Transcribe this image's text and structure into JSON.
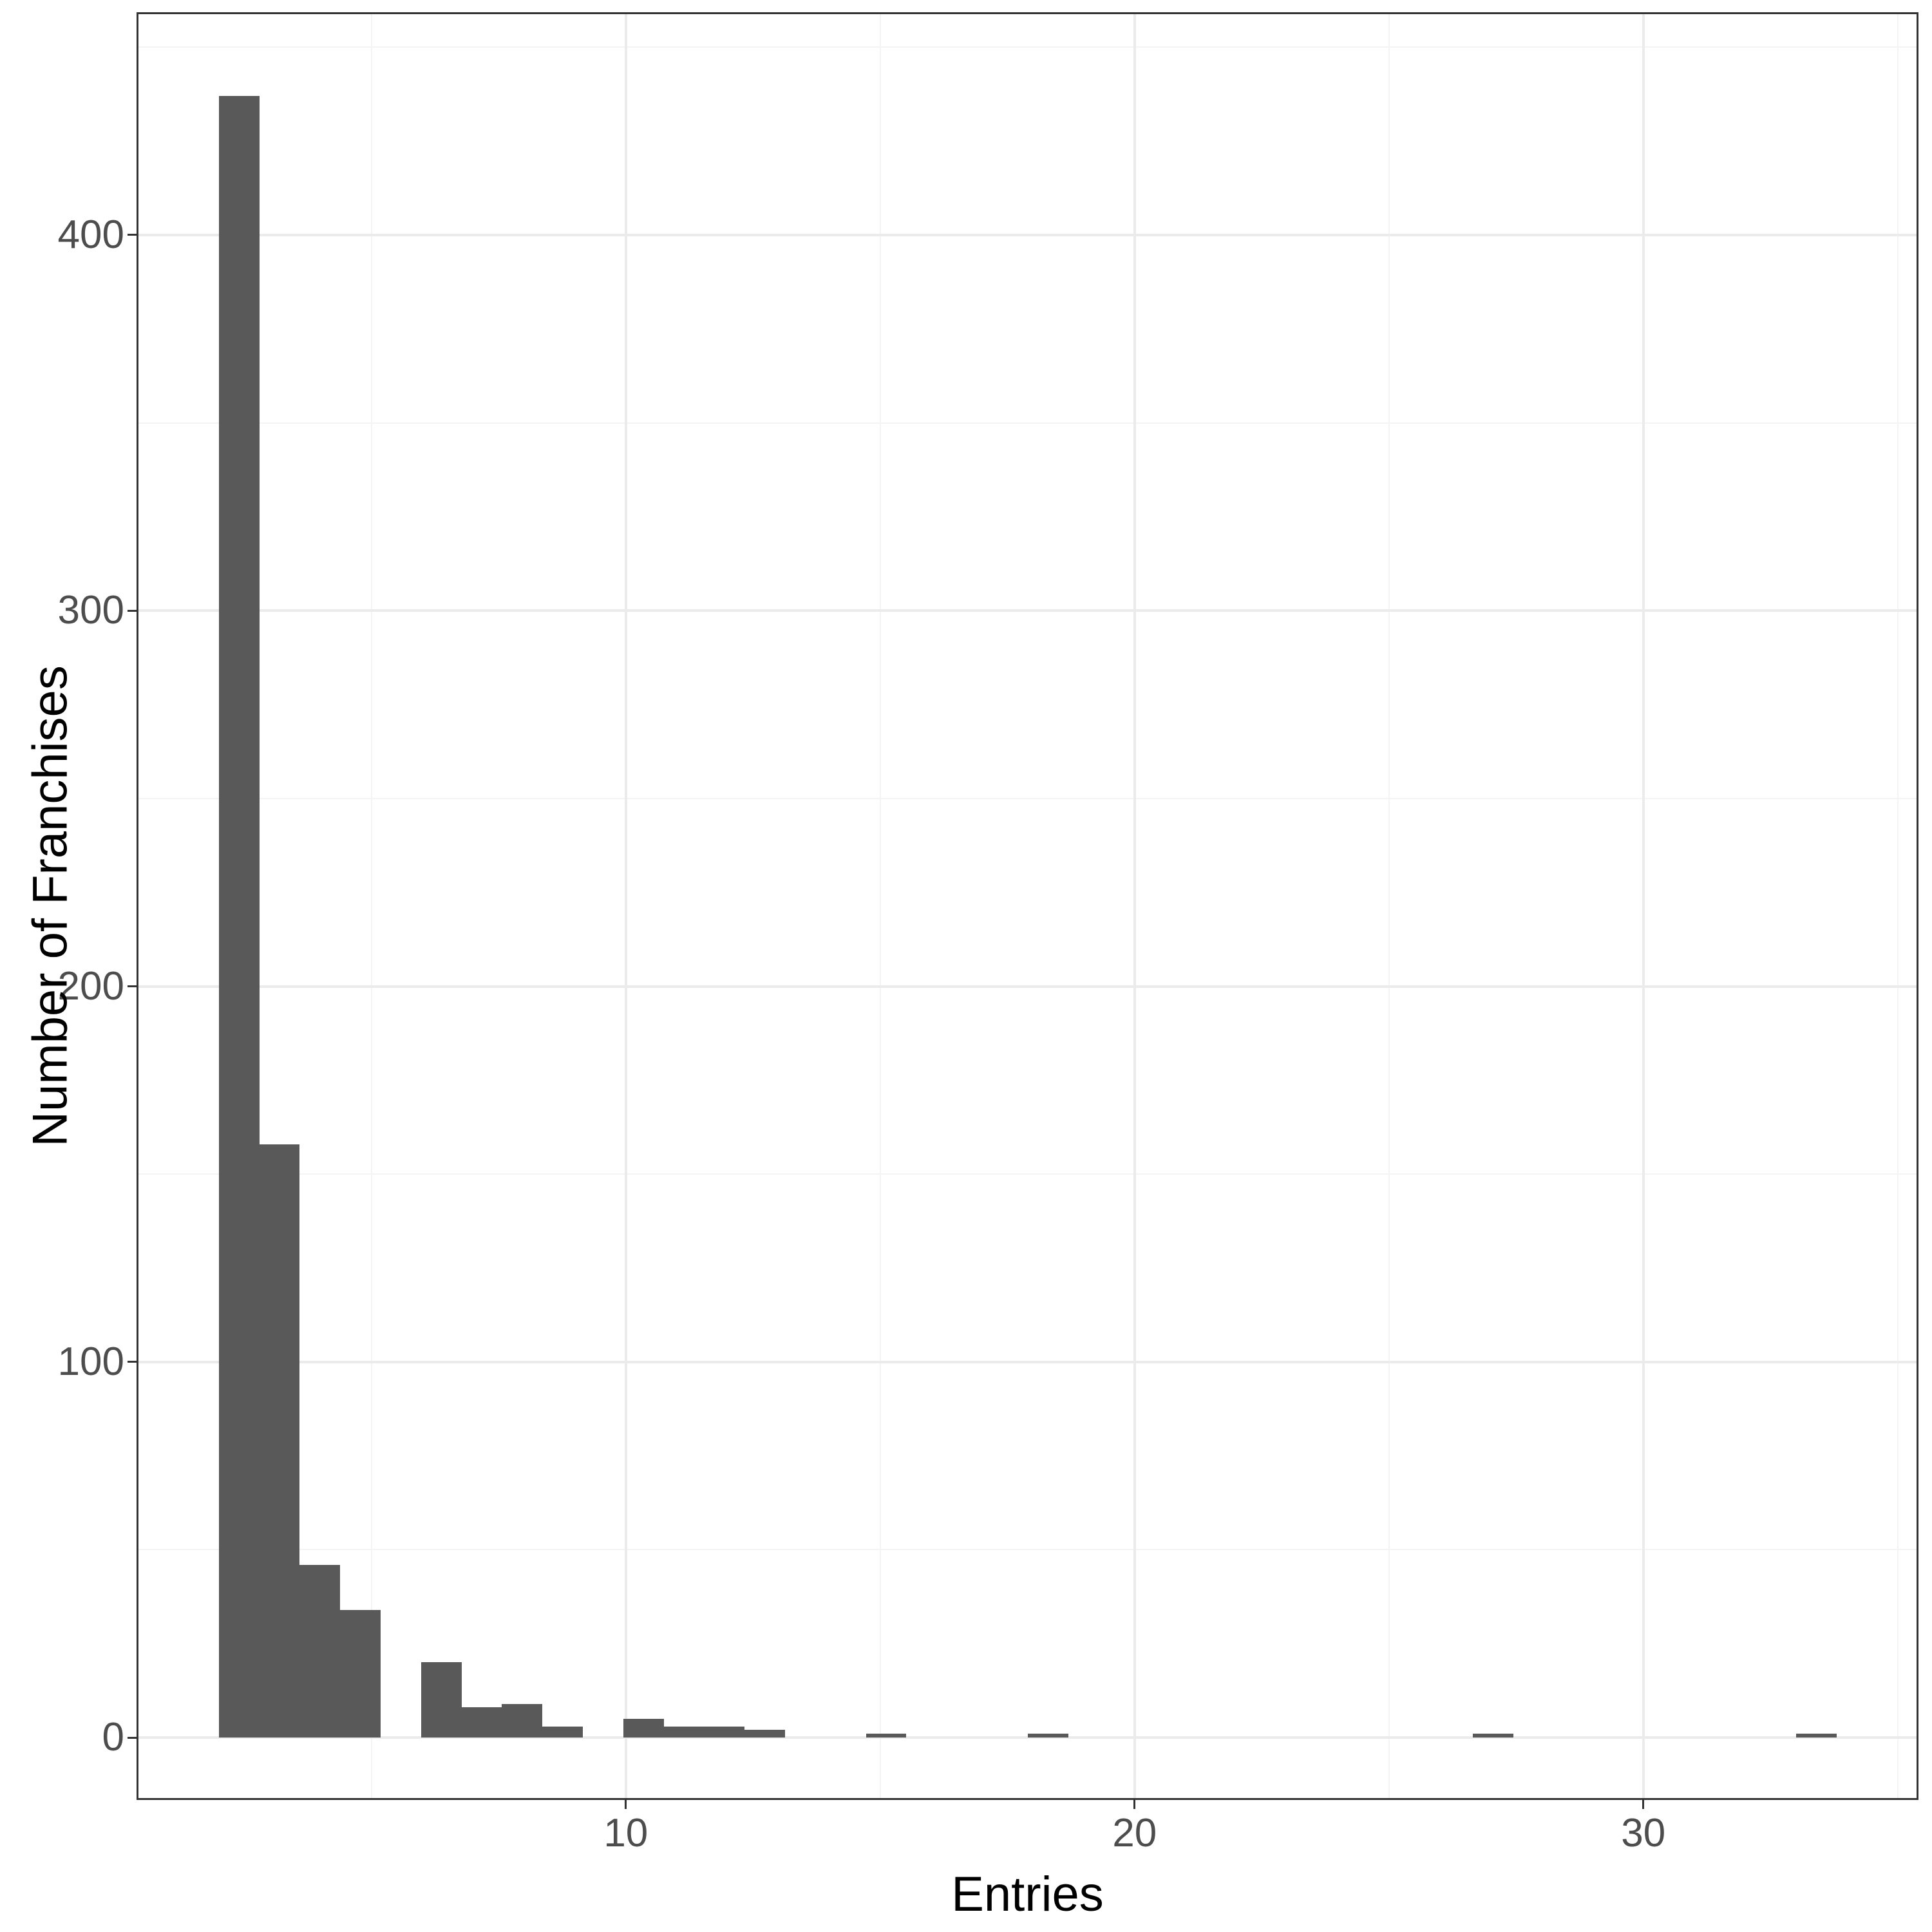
{
  "chart_data": {
    "type": "bar",
    "subtype": "histogram",
    "title": "",
    "xlabel": "Entries",
    "ylabel": "Number of Franchises",
    "grid": "on",
    "legend": "none",
    "x_axis": {
      "min": 0.42,
      "max": 35.37,
      "ticks": [
        10,
        20,
        30
      ],
      "minor_gridlines": [
        5,
        15,
        25,
        35
      ]
    },
    "y_axis": {
      "min": -16.1,
      "max": 458.8,
      "ticks": [
        0,
        100,
        200,
        300,
        400
      ],
      "minor_gridlines": [
        50,
        150,
        250,
        350,
        450
      ]
    },
    "bin_width": 0.795,
    "bins": [
      {
        "x0": 2.0,
        "x1": 2.795,
        "count": 437
      },
      {
        "x0": 2.795,
        "x1": 3.59,
        "count": 158
      },
      {
        "x0": 3.59,
        "x1": 4.385,
        "count": 46
      },
      {
        "x0": 4.385,
        "x1": 5.18,
        "count": 34
      },
      {
        "x0": 5.975,
        "x1": 6.77,
        "count": 20
      },
      {
        "x0": 6.77,
        "x1": 7.565,
        "count": 8
      },
      {
        "x0": 7.565,
        "x1": 8.36,
        "count": 9
      },
      {
        "x0": 8.36,
        "x1": 9.155,
        "count": 3
      },
      {
        "x0": 9.95,
        "x1": 10.745,
        "count": 5
      },
      {
        "x0": 10.745,
        "x1": 11.54,
        "count": 3
      },
      {
        "x0": 11.54,
        "x1": 12.335,
        "count": 3
      },
      {
        "x0": 12.335,
        "x1": 13.13,
        "count": 2
      },
      {
        "x0": 14.72,
        "x1": 15.515,
        "count": 1
      },
      {
        "x0": 17.9,
        "x1": 18.695,
        "count": 1
      },
      {
        "x0": 26.645,
        "x1": 27.44,
        "count": 1
      },
      {
        "x0": 33.005,
        "x1": 33.8,
        "count": 1
      }
    ],
    "colors": {
      "bar_fill": "#595959",
      "grid_major": "#ebebeb",
      "grid_minor": "#f4f4f4",
      "panel_border": "#333333",
      "axis_tick": "#333333",
      "tick_label": "#4d4d4d",
      "axis_title": "#000000",
      "background": "#ffffff"
    }
  }
}
